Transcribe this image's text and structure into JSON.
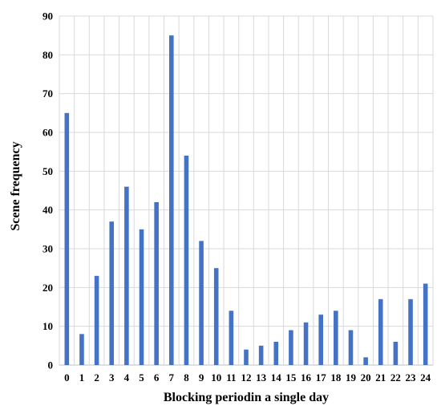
{
  "chart_data": {
    "type": "bar",
    "title": "",
    "xlabel": "Blocking periodin a single day",
    "ylabel": "Scene frequency",
    "categories": [
      "0",
      "1",
      "2",
      "3",
      "4",
      "5",
      "6",
      "7",
      "8",
      "9",
      "10",
      "11",
      "12",
      "13",
      "14",
      "15",
      "16",
      "17",
      "18",
      "19",
      "20",
      "21",
      "22",
      "23",
      "24"
    ],
    "values": [
      65,
      8,
      23,
      37,
      46,
      35,
      42,
      85,
      54,
      32,
      25,
      14,
      4,
      5,
      6,
      9,
      11,
      13,
      14,
      9,
      2,
      17,
      6,
      17,
      21
    ],
    "ylim": [
      0,
      90
    ],
    "yticks": [
      "0",
      "10",
      "20",
      "30",
      "40",
      "50",
      "60",
      "70",
      "80",
      "90"
    ],
    "grid": true,
    "legend": "none",
    "bar_color": "#4472c4"
  }
}
